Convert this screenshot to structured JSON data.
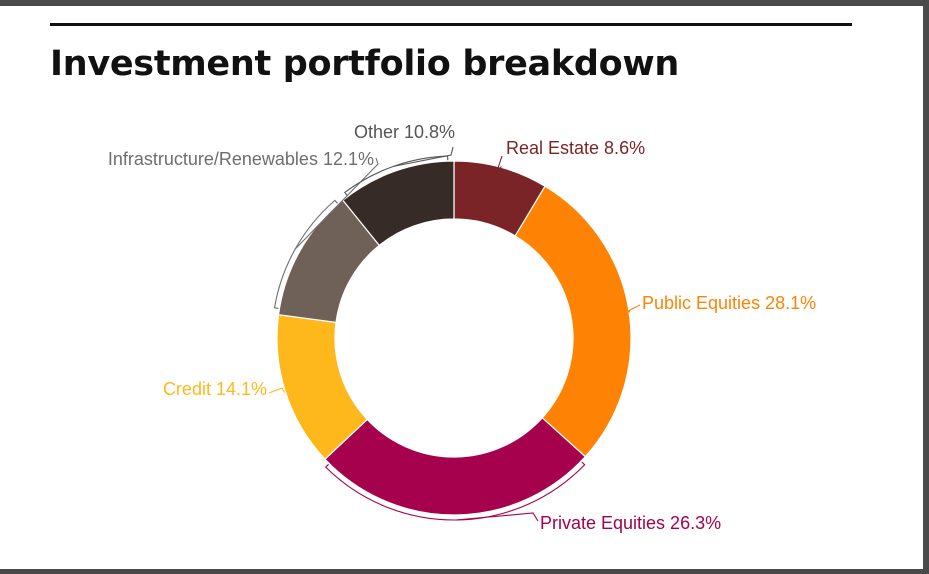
{
  "title": "Investment portfolio breakdown",
  "chart_data": {
    "type": "pie",
    "donut": true,
    "title": "Investment portfolio breakdown",
    "slices": [
      {
        "name": "Real Estate",
        "value": 8.6,
        "label": "Real Estate 8.6%",
        "color": "#7b2427"
      },
      {
        "name": "Public Equities",
        "value": 28.1,
        "label": "Public Equities 28.1%",
        "color": "#fe8304"
      },
      {
        "name": "Private Equities",
        "value": 26.3,
        "label": "Private Equities 26.3%",
        "color": "#a5014d"
      },
      {
        "name": "Credit",
        "value": 14.1,
        "label": "Credit 14.1%",
        "color": "#ffb81c"
      },
      {
        "name": "Infrastructure/Renewables",
        "value": 12.1,
        "label": "Infrastructure/Renewables 12.1%",
        "color": "#706158"
      },
      {
        "name": "Other",
        "value": 10.8,
        "label": "Other 10.8%",
        "color": "#372b28"
      }
    ],
    "legend": "none"
  },
  "colors": {
    "frame": "#4a4a4a",
    "title_text": "#111111",
    "infra_label": "#6e6e6e",
    "other_label": "#555555"
  }
}
